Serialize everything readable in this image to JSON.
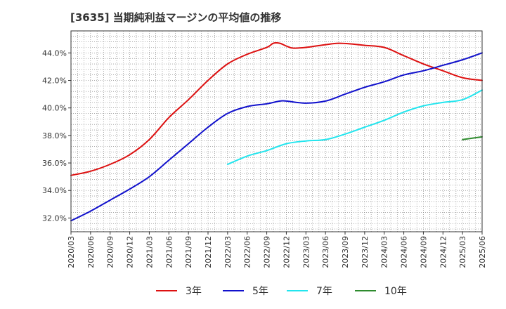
{
  "chart_data": {
    "type": "line",
    "title": "[3635]  当期純利益マージンの平均値の推移",
    "xlabel": "",
    "ylabel": "",
    "ylim": [
      31.0,
      45.6
    ],
    "y_ticks": [
      32.0,
      34.0,
      36.0,
      38.0,
      40.0,
      42.0,
      44.0
    ],
    "y_tick_labels": [
      "32.0%",
      "34.0%",
      "36.0%",
      "38.0%",
      "40.0%",
      "42.0%",
      "44.0%"
    ],
    "x_range": [
      "2020-03",
      "2025-06"
    ],
    "x_tick_labels": [
      "2020/03",
      "2020/06",
      "2020/09",
      "2020/12",
      "2021/03",
      "2021/06",
      "2021/09",
      "2021/12",
      "2022/03",
      "2022/06",
      "2022/09",
      "2022/12",
      "2023/03",
      "2023/06",
      "2023/09",
      "2023/12",
      "2024/03",
      "2024/06",
      "2024/09",
      "2024/12",
      "2025/03",
      "2025/06"
    ],
    "grid": true,
    "legend_position": "bottom",
    "series": [
      {
        "name": "3年",
        "color": "#dd1111",
        "points": [
          [
            "2020-03",
            35.1
          ],
          [
            "2020-06",
            35.4
          ],
          [
            "2020-09",
            35.9
          ],
          [
            "2020-12",
            36.6
          ],
          [
            "2021-03",
            37.7
          ],
          [
            "2021-06",
            39.3
          ],
          [
            "2021-09",
            40.6
          ],
          [
            "2021-12",
            42.0
          ],
          [
            "2022-03",
            43.2
          ],
          [
            "2022-06",
            43.9
          ],
          [
            "2022-09",
            44.4
          ],
          [
            "2022-10",
            44.7
          ],
          [
            "2022-11",
            44.7
          ],
          [
            "2022-12",
            44.5
          ],
          [
            "2023-01",
            44.35
          ],
          [
            "2023-03",
            44.4
          ],
          [
            "2023-06",
            44.6
          ],
          [
            "2023-08",
            44.7
          ],
          [
            "2023-10",
            44.65
          ],
          [
            "2023-12",
            44.55
          ],
          [
            "2024-03",
            44.4
          ],
          [
            "2024-06",
            43.8
          ],
          [
            "2024-09",
            43.2
          ],
          [
            "2024-12",
            42.7
          ],
          [
            "2025-03",
            42.2
          ],
          [
            "2025-06",
            42.0
          ]
        ]
      },
      {
        "name": "5年",
        "color": "#1111cc",
        "points": [
          [
            "2020-03",
            31.8
          ],
          [
            "2020-06",
            32.5
          ],
          [
            "2020-09",
            33.3
          ],
          [
            "2020-12",
            34.1
          ],
          [
            "2021-03",
            35.0
          ],
          [
            "2021-06",
            36.2
          ],
          [
            "2021-09",
            37.4
          ],
          [
            "2021-12",
            38.6
          ],
          [
            "2022-03",
            39.6
          ],
          [
            "2022-06",
            40.1
          ],
          [
            "2022-09",
            40.3
          ],
          [
            "2022-11",
            40.5
          ],
          [
            "2022-12",
            40.5
          ],
          [
            "2023-03",
            40.35
          ],
          [
            "2023-06",
            40.5
          ],
          [
            "2023-09",
            41.0
          ],
          [
            "2023-12",
            41.5
          ],
          [
            "2024-03",
            41.9
          ],
          [
            "2024-06",
            42.4
          ],
          [
            "2024-09",
            42.7
          ],
          [
            "2024-12",
            43.1
          ],
          [
            "2025-03",
            43.5
          ],
          [
            "2025-06",
            44.0
          ]
        ]
      },
      {
        "name": "7年",
        "color": "#22e5ee",
        "points": [
          [
            "2022-03",
            35.9
          ],
          [
            "2022-06",
            36.5
          ],
          [
            "2022-09",
            36.9
          ],
          [
            "2022-12",
            37.4
          ],
          [
            "2023-03",
            37.6
          ],
          [
            "2023-06",
            37.7
          ],
          [
            "2023-09",
            38.1
          ],
          [
            "2023-12",
            38.6
          ],
          [
            "2024-03",
            39.1
          ],
          [
            "2024-06",
            39.7
          ],
          [
            "2024-09",
            40.15
          ],
          [
            "2024-12",
            40.4
          ],
          [
            "2025-03",
            40.6
          ],
          [
            "2025-06",
            41.3
          ]
        ]
      },
      {
        "name": "10年",
        "color": "#2e8b2e",
        "points": [
          [
            "2025-03",
            37.7
          ],
          [
            "2025-06",
            37.9
          ]
        ]
      }
    ]
  }
}
